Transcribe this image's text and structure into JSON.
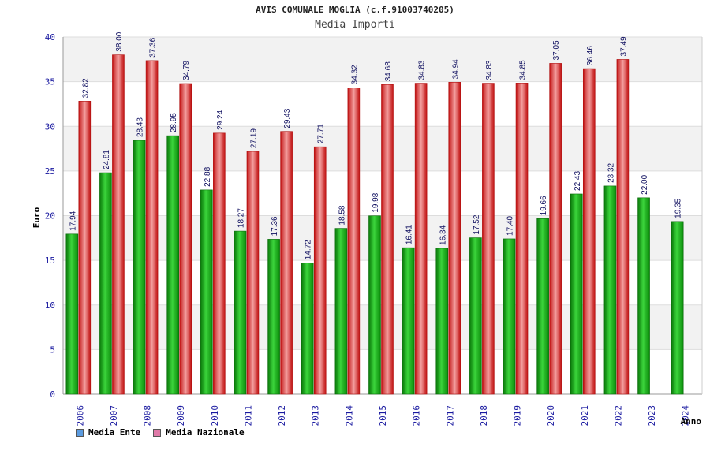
{
  "title": "AVIS COMUNALE MOGLIA (c.f.91003740205)",
  "subtitle": "Media Importi",
  "colors": {
    "ente": "#18b018",
    "nazionale": "#e02424",
    "ente_legend": "#5b9be0",
    "nazionale_legend": "#e07aa8",
    "axis_text": "#1a1aa0",
    "grid_band": "#f2f2f2"
  },
  "legend": {
    "ente_label": "Media Ente",
    "nazionale_label": "Media Nazionale"
  },
  "chart_data": {
    "type": "bar",
    "title": "AVIS COMUNALE MOGLIA (c.f.91003740205)",
    "subtitle": "Media Importi",
    "xlabel": "Anno",
    "ylabel": "Euro",
    "ylim": [
      0,
      40
    ],
    "yticks": [
      0,
      5,
      10,
      15,
      20,
      25,
      30,
      35,
      40
    ],
    "categories": [
      "2006",
      "2007",
      "2008",
      "2009",
      "2010",
      "2011",
      "2012",
      "2013",
      "2014",
      "2015",
      "2016",
      "2017",
      "2018",
      "2019",
      "2020",
      "2021",
      "2022",
      "2023",
      "2024"
    ],
    "series": [
      {
        "name": "Media Ente",
        "values": [
          17.94,
          24.81,
          28.43,
          28.95,
          22.88,
          18.27,
          17.36,
          14.72,
          18.58,
          19.98,
          16.41,
          16.34,
          17.52,
          17.4,
          19.66,
          22.43,
          23.32,
          22.0,
          19.35
        ]
      },
      {
        "name": "Media Nazionale",
        "values": [
          32.82,
          38.0,
          37.36,
          34.79,
          29.24,
          27.19,
          29.43,
          27.71,
          34.32,
          34.68,
          34.83,
          34.94,
          34.83,
          34.85,
          37.05,
          36.46,
          37.49,
          null,
          null
        ]
      }
    ],
    "grid": true,
    "legend_position": "bottom-left"
  }
}
